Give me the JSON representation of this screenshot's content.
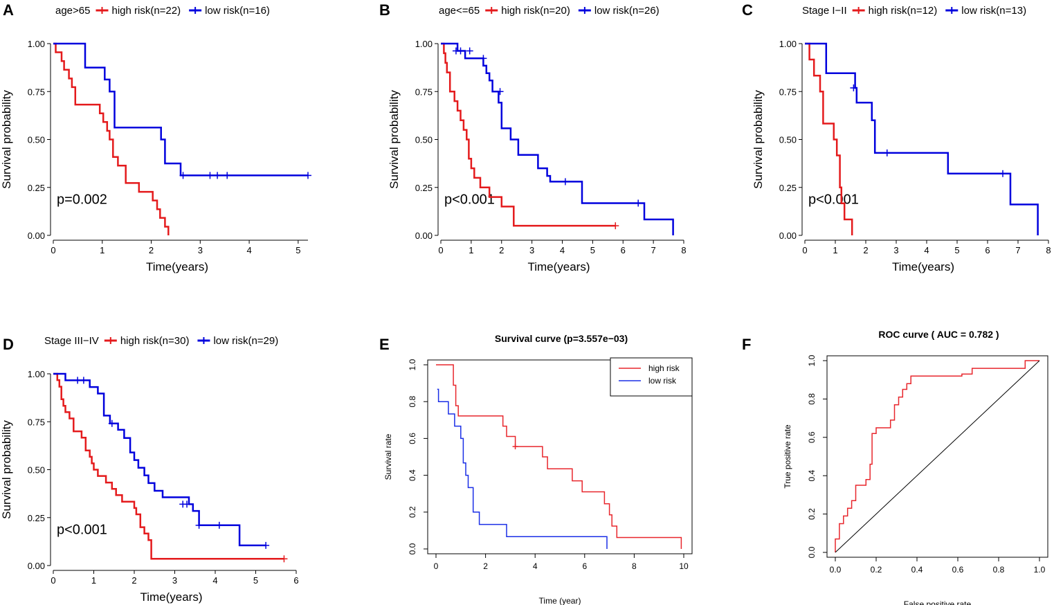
{
  "colors": {
    "high": "#e41a1c",
    "low": "#0000dd",
    "e_high": "#e8262c",
    "e_low": "#1a2ee6",
    "roc": "#e8262c",
    "axis": "#000000"
  },
  "chart_data": [
    {
      "panel": "A",
      "type": "line",
      "kind": "km",
      "legend_title": "age>65",
      "pvalue": "p=0.002",
      "xlabel": "Time(years)",
      "ylabel": "Survival probability",
      "xlim": [
        0,
        5.2
      ],
      "ylim": [
        0,
        1
      ],
      "xticks": [
        0,
        1,
        2,
        3,
        4,
        5
      ],
      "xtick_labels": [
        "0",
        "1",
        "2",
        "3",
        "4",
        "5"
      ],
      "yticks": [
        0,
        0.25,
        0.5,
        0.75,
        1
      ],
      "ytick_labels": [
        "0.00",
        "0.25",
        "0.50",
        "0.75",
        "1.00"
      ],
      "series": [
        {
          "name": "high risk(n=22)",
          "color_key": "high",
          "x": [
            0,
            0.05,
            0.17,
            0.22,
            0.32,
            0.38,
            0.45,
            0.95,
            1.02,
            1.1,
            1.15,
            1.22,
            1.32,
            1.48,
            1.75,
            2.03,
            2.12,
            2.18,
            2.28,
            2.35
          ],
          "y": [
            1.0,
            0.955,
            0.909,
            0.864,
            0.818,
            0.773,
            0.682,
            0.636,
            0.591,
            0.545,
            0.5,
            0.409,
            0.364,
            0.273,
            0.227,
            0.182,
            0.136,
            0.091,
            0.045,
            0.0
          ],
          "censor_x": [],
          "censor_y": []
        },
        {
          "name": "low risk(n=16)",
          "color_key": "low",
          "x": [
            0,
            0.65,
            1.05,
            1.15,
            1.25,
            2.2,
            2.28,
            2.6,
            5.2
          ],
          "y": [
            1.0,
            0.875,
            0.8125,
            0.75,
            0.5625,
            0.5,
            0.375,
            0.3125,
            0.3125
          ],
          "censor_x": [
            2.65,
            3.2,
            3.35,
            3.55,
            5.2
          ],
          "censor_y": [
            0.3125,
            0.3125,
            0.3125,
            0.3125,
            0.3125
          ]
        }
      ]
    },
    {
      "panel": "B",
      "type": "line",
      "kind": "km",
      "legend_title": "age<=65",
      "pvalue": "p<0.001",
      "xlabel": "Time(years)",
      "ylabel": "Survival probability",
      "xlim": [
        0,
        8
      ],
      "ylim": [
        0,
        1
      ],
      "xticks": [
        0,
        1,
        2,
        3,
        4,
        5,
        6,
        7,
        8
      ],
      "xtick_labels": [
        "0",
        "1",
        "2",
        "3",
        "4",
        "5",
        "6",
        "7",
        "8"
      ],
      "yticks": [
        0,
        0.25,
        0.5,
        0.75,
        1
      ],
      "ytick_labels": [
        "0.00",
        "0.25",
        "0.50",
        "0.75",
        "1.00"
      ],
      "series": [
        {
          "name": "high risk(n=20)",
          "color_key": "high",
          "x": [
            0,
            0.1,
            0.15,
            0.2,
            0.3,
            0.45,
            0.55,
            0.65,
            0.75,
            0.85,
            0.92,
            1.0,
            1.1,
            1.3,
            1.6,
            2.0,
            2.4,
            5.75
          ],
          "y": [
            1.0,
            0.95,
            0.9,
            0.85,
            0.75,
            0.7,
            0.65,
            0.6,
            0.55,
            0.5,
            0.4,
            0.35,
            0.3,
            0.25,
            0.2,
            0.15,
            0.05,
            0.05
          ],
          "censor_x": [
            5.75
          ],
          "censor_y": [
            0.05
          ]
        },
        {
          "name": "low risk(n=26)",
          "color_key": "low",
          "x": [
            0,
            0.55,
            0.8,
            1.4,
            1.5,
            1.6,
            1.7,
            1.9,
            2.0,
            2.3,
            2.55,
            3.2,
            3.5,
            3.6,
            4.65,
            6.7,
            7.65
          ],
          "y": [
            1.0,
            0.962,
            0.923,
            0.885,
            0.846,
            0.808,
            0.75,
            0.692,
            0.558,
            0.5,
            0.42,
            0.35,
            0.31,
            0.28,
            0.168,
            0.083,
            0.0
          ],
          "censor_x": [
            0.5,
            0.65,
            0.95,
            1.4,
            1.95,
            4.1,
            6.5
          ],
          "censor_y": [
            0.962,
            0.962,
            0.962,
            0.923,
            0.75,
            0.28,
            0.168
          ]
        }
      ]
    },
    {
      "panel": "C",
      "type": "line",
      "kind": "km",
      "legend_title": "Stage I−II",
      "pvalue": "p<0.001",
      "xlabel": "Time(years)",
      "ylabel": "Survival probability",
      "xlim": [
        0,
        8
      ],
      "ylim": [
        0,
        1
      ],
      "xticks": [
        0,
        1,
        2,
        3,
        4,
        5,
        6,
        7,
        8
      ],
      "xtick_labels": [
        "0",
        "1",
        "2",
        "3",
        "4",
        "5",
        "6",
        "7",
        "8"
      ],
      "yticks": [
        0,
        0.25,
        0.5,
        0.75,
        1
      ],
      "ytick_labels": [
        "0.00",
        "0.25",
        "0.50",
        "0.75",
        "1.00"
      ],
      "series": [
        {
          "name": "high risk(n=12)",
          "color_key": "high",
          "x": [
            0,
            0.15,
            0.3,
            0.5,
            0.6,
            0.95,
            1.05,
            1.15,
            1.2,
            1.3,
            1.55
          ],
          "y": [
            1.0,
            0.917,
            0.833,
            0.75,
            0.583,
            0.5,
            0.417,
            0.25,
            0.167,
            0.083,
            0.0
          ],
          "censor_x": [],
          "censor_y": []
        },
        {
          "name": "low risk(n=13)",
          "color_key": "low",
          "x": [
            0,
            0.7,
            1.65,
            1.7,
            2.2,
            2.3,
            4.7,
            6.75,
            7.65
          ],
          "y": [
            1.0,
            0.846,
            0.769,
            0.692,
            0.6,
            0.43,
            0.322,
            0.161,
            0.0
          ],
          "censor_x": [
            1.6,
            2.7,
            6.5
          ],
          "censor_y": [
            0.769,
            0.43,
            0.322
          ]
        }
      ]
    },
    {
      "panel": "D",
      "type": "line",
      "kind": "km",
      "legend_title": "Stage III−IV",
      "pvalue": "p<0.001",
      "xlabel": "Time(years)",
      "ylabel": "Survival probability",
      "xlim": [
        0,
        6
      ],
      "ylim": [
        0,
        1
      ],
      "xticks": [
        0,
        1,
        2,
        3,
        4,
        5,
        6
      ],
      "xtick_labels": [
        "0",
        "1",
        "2",
        "3",
        "4",
        "5",
        "6"
      ],
      "yticks": [
        0,
        0.25,
        0.5,
        0.75,
        1
      ],
      "ytick_labels": [
        "0.00",
        "0.25",
        "0.50",
        "0.75",
        "1.00"
      ],
      "series": [
        {
          "name": "high risk(n=30)",
          "color_key": "high",
          "x": [
            0,
            0.1,
            0.15,
            0.2,
            0.25,
            0.3,
            0.4,
            0.5,
            0.7,
            0.8,
            0.9,
            0.95,
            1.0,
            1.1,
            1.3,
            1.45,
            1.55,
            1.7,
            2.0,
            2.05,
            2.15,
            2.25,
            2.35,
            2.42,
            5.7
          ],
          "y": [
            1.0,
            0.967,
            0.933,
            0.867,
            0.833,
            0.8,
            0.767,
            0.7,
            0.667,
            0.6,
            0.567,
            0.533,
            0.5,
            0.467,
            0.433,
            0.4,
            0.367,
            0.333,
            0.3,
            0.267,
            0.2,
            0.167,
            0.133,
            0.035,
            0.035
          ],
          "censor_x": [
            5.7
          ],
          "censor_y": [
            0.035
          ]
        },
        {
          "name": "low risk(n=29)",
          "color_key": "low",
          "x": [
            0,
            0.3,
            0.9,
            1.1,
            1.25,
            1.4,
            1.6,
            1.75,
            1.9,
            2.0,
            2.1,
            2.25,
            2.35,
            2.5,
            2.7,
            3.35,
            3.45,
            3.6,
            4.6,
            5.25
          ],
          "y": [
            1.0,
            0.966,
            0.931,
            0.897,
            0.782,
            0.741,
            0.708,
            0.665,
            0.59,
            0.55,
            0.51,
            0.47,
            0.43,
            0.39,
            0.356,
            0.32,
            0.285,
            0.21,
            0.105,
            0.105
          ],
          "censor_x": [
            0.6,
            0.75,
            1.45,
            3.2,
            3.3,
            3.6,
            4.1,
            5.25
          ],
          "censor_y": [
            0.966,
            0.966,
            0.741,
            0.32,
            0.32,
            0.21,
            0.21,
            0.105
          ]
        }
      ]
    },
    {
      "panel": "E",
      "type": "line",
      "kind": "base",
      "title": "Survival curve (p=3.557e−03)",
      "xlabel": "Time (year)",
      "ylabel": "Survival rate",
      "xlim": [
        0,
        10
      ],
      "ylim": [
        0,
        1
      ],
      "xticks": [
        0,
        2,
        4,
        6,
        8,
        10
      ],
      "xtick_labels": [
        "0",
        "2",
        "4",
        "6",
        "8",
        "10"
      ],
      "yticks": [
        0,
        0.2,
        0.4,
        0.6,
        0.8,
        1.0
      ],
      "ytick_labels": [
        "0.0",
        "0.2",
        "0.4",
        "0.6",
        "0.8",
        "1.0"
      ],
      "legend": [
        "high risk",
        "low risk"
      ],
      "legend_position": "top-right",
      "series": [
        {
          "name": "high risk",
          "color_key": "e_high",
          "x": [
            0,
            0.7,
            0.8,
            0.9,
            2.7,
            2.85,
            3.0,
            3.2,
            4.3,
            4.5,
            5.5,
            5.9,
            6.8,
            7.0,
            7.1,
            7.3,
            9.9,
            9.9
          ],
          "y": [
            1.0,
            0.889,
            0.778,
            0.722,
            0.667,
            0.611,
            0.611,
            0.556,
            0.5,
            0.435,
            0.37,
            0.31,
            0.245,
            0.185,
            0.124,
            0.062,
            0.062,
            0.0
          ],
          "censor_x": [
            3.2
          ],
          "censor_y": [
            0.556
          ]
        },
        {
          "name": "low risk",
          "color_key": "e_low",
          "x": [
            0.05,
            0.1,
            0.5,
            0.75,
            1.0,
            1.1,
            1.2,
            1.3,
            1.5,
            1.75,
            2.85,
            6.9,
            6.9
          ],
          "y": [
            0.867,
            0.8,
            0.733,
            0.667,
            0.6,
            0.467,
            0.4,
            0.333,
            0.2,
            0.133,
            0.067,
            0.067,
            0.0
          ],
          "censor_x": [],
          "censor_y": []
        }
      ]
    },
    {
      "panel": "F",
      "type": "line",
      "kind": "roc",
      "title": "ROC curve ( AUC =  0.782 )",
      "xlabel": "False positive rate",
      "ylabel": "True positive rate",
      "xlim": [
        0,
        1
      ],
      "ylim": [
        0,
        1
      ],
      "xticks": [
        0,
        0.2,
        0.4,
        0.6,
        0.8,
        1.0
      ],
      "xtick_labels": [
        "0.0",
        "0.2",
        "0.4",
        "0.6",
        "0.8",
        "1.0"
      ],
      "yticks": [
        0,
        0.2,
        0.4,
        0.6,
        0.8,
        1.0
      ],
      "ytick_labels": [
        "0.0",
        "0.2",
        "0.4",
        "0.6",
        "0.8",
        "1.0"
      ],
      "series": [
        {
          "name": "ROC",
          "color_key": "roc",
          "x": [
            0,
            0,
            0.02,
            0.02,
            0.04,
            0.04,
            0.06,
            0.06,
            0.08,
            0.08,
            0.1,
            0.1,
            0.15,
            0.15,
            0.17,
            0.17,
            0.18,
            0.18,
            0.2,
            0.2,
            0.27,
            0.27,
            0.29,
            0.29,
            0.31,
            0.31,
            0.33,
            0.33,
            0.35,
            0.35,
            0.37,
            0.37,
            0.62,
            0.62,
            0.67,
            0.67,
            0.93,
            0.93,
            1.0
          ],
          "y": [
            0,
            0.07,
            0.07,
            0.15,
            0.15,
            0.19,
            0.19,
            0.23,
            0.23,
            0.27,
            0.27,
            0.35,
            0.35,
            0.38,
            0.38,
            0.46,
            0.46,
            0.62,
            0.62,
            0.65,
            0.65,
            0.69,
            0.69,
            0.77,
            0.77,
            0.81,
            0.81,
            0.85,
            0.85,
            0.88,
            0.88,
            0.92,
            0.92,
            0.93,
            0.93,
            0.96,
            0.96,
            1.0,
            1.0
          ],
          "censor_x": [],
          "censor_y": []
        },
        {
          "name": "reference",
          "color_key": "axis",
          "x": [
            0,
            1
          ],
          "y": [
            0,
            1
          ],
          "censor_x": [],
          "censor_y": []
        }
      ]
    }
  ]
}
